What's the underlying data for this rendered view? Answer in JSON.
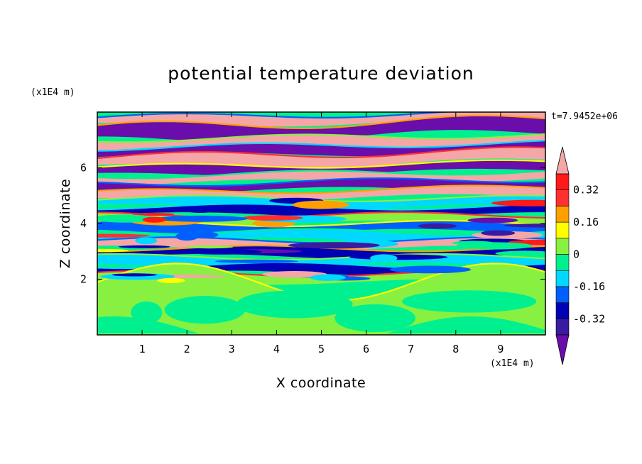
{
  "chart_data": {
    "type": "heatmap",
    "title": "potential temperature deviation",
    "xlabel": "X coordinate",
    "ylabel": "Z coordinate",
    "x_unit": "(x1E4 m)",
    "y_unit": "(x1E4 m)",
    "time_label": "t=7.9452e+06",
    "xlim": [
      0,
      10
    ],
    "ylim": [
      0,
      8
    ],
    "x_ticks": [
      "1",
      "2",
      "3",
      "4",
      "5",
      "6",
      "7",
      "8",
      "9"
    ],
    "y_ticks": [
      "2",
      "4",
      "6"
    ],
    "grid": false,
    "colorbar": {
      "placement": "right",
      "labels": [
        "0.32",
        "0.16",
        "0",
        "-0.16",
        "-0.32"
      ],
      "label_values": [
        0.32,
        0.16,
        0,
        -0.16,
        -0.32
      ],
      "levels": [
        -0.4,
        -0.32,
        -0.24,
        -0.16,
        -0.08,
        0,
        0.08,
        0.16,
        0.24,
        0.32,
        0.4
      ],
      "colors": [
        "#6a0dab",
        "#3a1aa0",
        "#0000b4",
        "#0060ff",
        "#00d8ff",
        "#00f090",
        "#88f040",
        "#ffff00",
        "#ffa000",
        "#ff3030",
        "#ff1a1a",
        "#f5a6a6"
      ],
      "extend": "both"
    },
    "bands": [
      {
        "z": [
          7.6,
          7.9
        ],
        "dominant": "#f5a6a6"
      },
      {
        "z": [
          7.1,
          7.6
        ],
        "dominant": "#6a0dab"
      },
      {
        "z": [
          6.8,
          7.1
        ],
        "dominant": "#f5a6a6"
      },
      {
        "z": [
          6.5,
          6.8
        ],
        "dominant": "#6a0dab"
      },
      {
        "z": [
          6.1,
          6.5
        ],
        "dominant": "#f5a6a6"
      },
      {
        "z": [
          5.8,
          6.1
        ],
        "dominant": "#6a0dab"
      },
      {
        "z": [
          5.5,
          5.8
        ],
        "dominant": "#f5a6a6"
      },
      {
        "z": [
          5.2,
          5.5
        ],
        "dominant": "#6a0dab"
      },
      {
        "z": [
          4.9,
          5.2
        ],
        "dominant": "#f5a6a6"
      },
      {
        "z": [
          4.6,
          4.9
        ],
        "dominant": "#00d8ff"
      },
      {
        "z": [
          4.3,
          4.6
        ],
        "dominant": "#0000b4"
      },
      {
        "z": [
          4.0,
          4.3
        ],
        "dominant": "#88f040"
      },
      {
        "z": [
          3.7,
          4.0
        ],
        "dominant": "#0060ff"
      },
      {
        "z": [
          3.4,
          3.7
        ],
        "dominant": "#00d8ff"
      },
      {
        "z": [
          3.1,
          3.4
        ],
        "dominant": "#f5a6a6"
      },
      {
        "z": [
          2.8,
          3.1
        ],
        "dominant": "#0000b4"
      },
      {
        "z": [
          2.5,
          2.8
        ],
        "dominant": "#00d8ff"
      },
      {
        "z": [
          2.2,
          2.5
        ],
        "dominant": "#0000b4"
      },
      {
        "z": [
          1.9,
          2.2
        ],
        "dominant": "#88f040"
      },
      {
        "z": [
          0,
          1.9
        ],
        "dominant": "#88f040"
      }
    ],
    "lower_patches": [
      {
        "x": 1.1,
        "z": 0.8,
        "rx": 0.35,
        "rz": 0.4
      },
      {
        "x": 2.4,
        "z": 0.9,
        "rx": 0.9,
        "rz": 0.5
      },
      {
        "x": 4.4,
        "z": 1.1,
        "rx": 1.3,
        "rz": 0.5
      },
      {
        "x": 6.2,
        "z": 0.6,
        "rx": 0.9,
        "rz": 0.5
      },
      {
        "x": 8.3,
        "z": 1.2,
        "rx": 1.5,
        "rz": 0.4
      }
    ]
  }
}
